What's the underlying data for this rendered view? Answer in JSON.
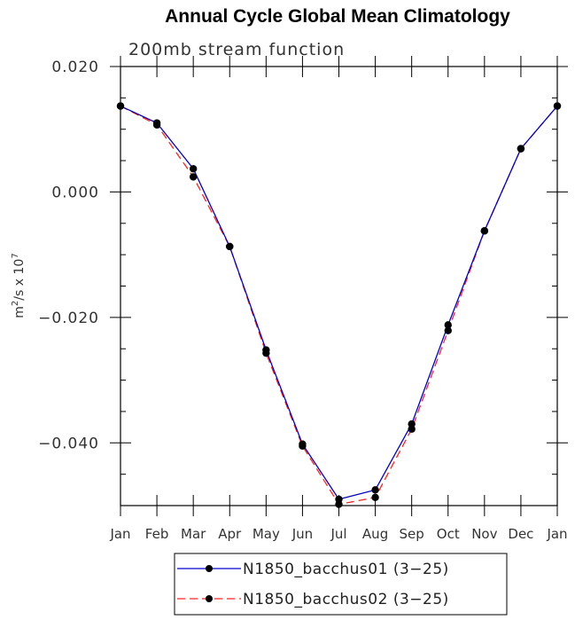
{
  "chart_data": {
    "type": "line",
    "title": "Annual Cycle Global Mean Climatology",
    "subtitle": "200mb stream function",
    "ylabel_parts": {
      "base": "m",
      "sup1": "2",
      "mid": "/s x 10",
      "sup2": "7"
    },
    "categories": [
      "Jan",
      "Feb",
      "Mar",
      "Apr",
      "May",
      "Jun",
      "Jul",
      "Aug",
      "Sep",
      "Oct",
      "Nov",
      "Dec",
      "Jan"
    ],
    "yticks": [
      0.02,
      0.0,
      -0.02,
      -0.04
    ],
    "ytick_labels": [
      "0.020",
      "0.000",
      "−0.020",
      "−0.040"
    ],
    "ylim": [
      -0.05,
      0.02
    ],
    "grid": false,
    "legend_position": "bottom",
    "series": [
      {
        "name": "N1850_bacchus01 (3−25)",
        "color": "#0000cc",
        "dash": "solid",
        "values": [
          0.0137,
          0.011,
          0.0037,
          -0.0087,
          -0.0252,
          -0.0402,
          -0.049,
          -0.0475,
          -0.037,
          -0.0212,
          -0.0062,
          0.0069,
          0.0137
        ]
      },
      {
        "name": "N1850_bacchus02 (3−25)",
        "color": "#ff2222",
        "dash": "dashed",
        "values": [
          0.0137,
          0.0107,
          0.0024,
          -0.0087,
          -0.0257,
          -0.0405,
          -0.0498,
          -0.0487,
          -0.0378,
          -0.0221,
          -0.0062,
          0.0069,
          0.0137
        ]
      }
    ]
  }
}
